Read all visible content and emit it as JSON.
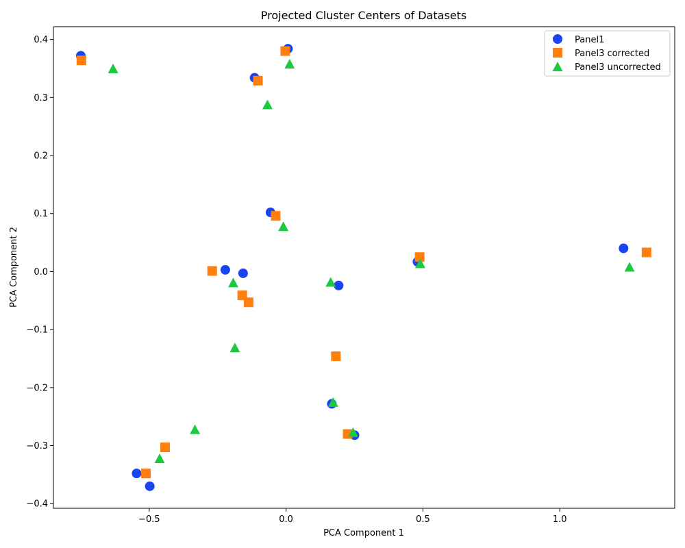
{
  "chart_data": {
    "type": "scatter",
    "title": "Projected Cluster Centers of Datasets",
    "xlabel": "PCA Component 1",
    "ylabel": "PCA Component 2",
    "xlim": [
      -0.85,
      1.42
    ],
    "ylim": [
      -0.408,
      0.422
    ],
    "xticks": [
      -0.5,
      0.0,
      0.5,
      1.0
    ],
    "xtick_labels": [
      "−0.5",
      "0.0",
      "0.5",
      "1.0"
    ],
    "yticks": [
      -0.4,
      -0.3,
      -0.2,
      -0.1,
      0.0,
      0.1,
      0.2,
      0.3,
      0.4
    ],
    "ytick_labels": [
      "−0.4",
      "−0.3",
      "−0.2",
      "−0.1",
      "0.0",
      "0.1",
      "0.2",
      "0.3",
      "0.4"
    ],
    "grid": false,
    "legend_position": "top-right",
    "series": [
      {
        "name": "Panel1",
        "marker": "circle",
        "color": "#1a44f0",
        "points": [
          [
            -0.75,
            0.372
          ],
          [
            0.007,
            0.384
          ],
          [
            -0.115,
            0.334
          ],
          [
            -0.057,
            0.102
          ],
          [
            -0.222,
            0.003
          ],
          [
            -0.157,
            -0.003
          ],
          [
            0.192,
            -0.024
          ],
          [
            0.48,
            0.017
          ],
          [
            1.233,
            0.04
          ],
          [
            0.167,
            -0.228
          ],
          [
            0.25,
            -0.282
          ],
          [
            -0.546,
            -0.348
          ],
          [
            -0.498,
            -0.37
          ]
        ]
      },
      {
        "name": "Panel3 corrected",
        "marker": "square",
        "color": "#ff7f0e",
        "points": [
          [
            -0.748,
            0.364
          ],
          [
            -0.003,
            0.38
          ],
          [
            -0.103,
            0.329
          ],
          [
            -0.038,
            0.096
          ],
          [
            -0.27,
            0.001
          ],
          [
            -0.16,
            -0.041
          ],
          [
            -0.137,
            -0.053
          ],
          [
            0.488,
            0.025
          ],
          [
            1.317,
            0.033
          ],
          [
            0.182,
            -0.146
          ],
          [
            0.225,
            -0.28
          ],
          [
            -0.512,
            -0.348
          ],
          [
            -0.442,
            -0.303
          ]
        ]
      },
      {
        "name": "Panel3 uncorrected",
        "marker": "triangle",
        "color": "#1dc93f",
        "points": [
          [
            -0.632,
            0.349
          ],
          [
            0.013,
            0.357
          ],
          [
            -0.068,
            0.287
          ],
          [
            -0.01,
            0.077
          ],
          [
            -0.193,
            -0.02
          ],
          [
            0.163,
            -0.019
          ],
          [
            0.49,
            0.013
          ],
          [
            1.255,
            0.007
          ],
          [
            -0.187,
            -0.132
          ],
          [
            0.172,
            -0.226
          ],
          [
            0.245,
            -0.278
          ],
          [
            -0.333,
            -0.273
          ],
          [
            -0.462,
            -0.323
          ]
        ]
      }
    ]
  }
}
